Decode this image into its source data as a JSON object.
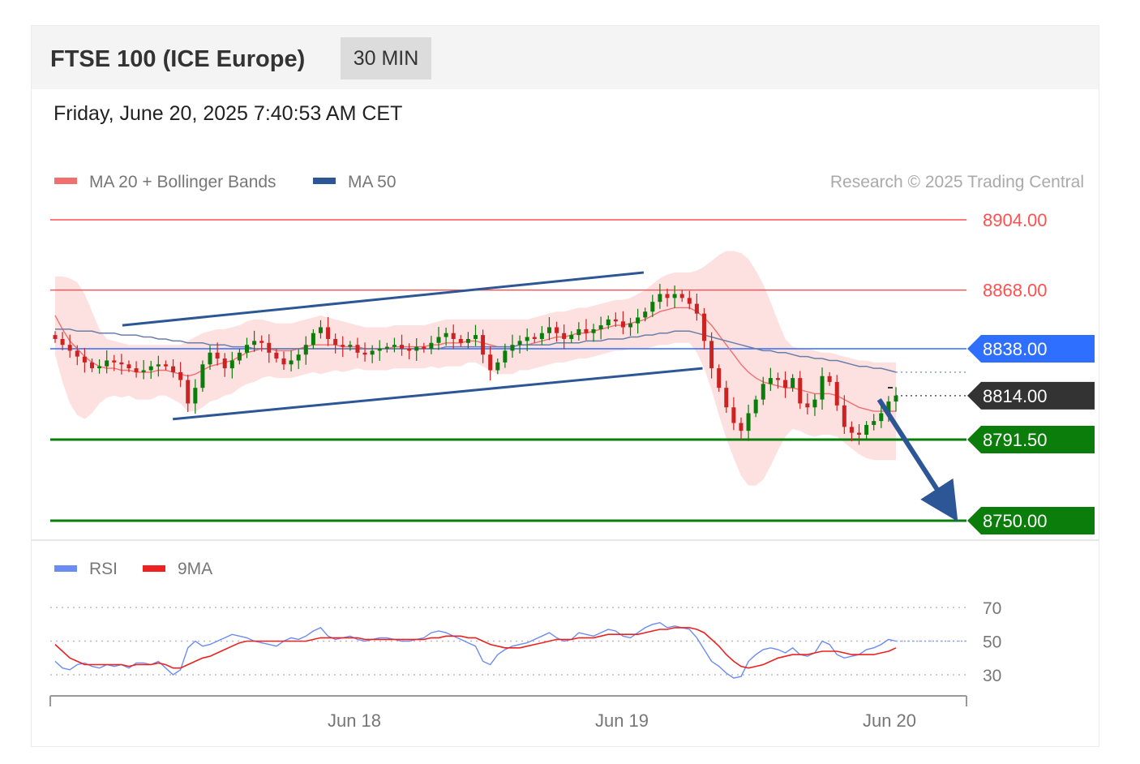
{
  "header": {
    "title": "FTSE 100 (ICE Europe)",
    "timeframe": "30 MIN",
    "timestamp": "Friday, June 20, 2025 7:40:53 AM CET"
  },
  "legend": {
    "ma20_label": "MA 20 + Bollinger Bands",
    "ma50_label": "MA 50",
    "credit": "Research © 2025 Trading Central",
    "rsi_label": "RSI",
    "rsi_ma_label": "9MA"
  },
  "colors": {
    "ma20": "#f07070",
    "bollinger_fill": "#fde0e0",
    "ma50": "#2d5696",
    "resistance": "#ff5050",
    "pivot": "#2f6fff",
    "support": "#0b7d0b",
    "last_price": "#333333",
    "candle_up": "#0b7d0b",
    "candle_down": "#cc2222",
    "rsi": "#6b8cf0",
    "rsi_ma": "#ee2020"
  },
  "chart_data": [
    {
      "type": "candlestick",
      "title": "FTSE 100 (ICE Europe)",
      "timeframe": "30 MIN",
      "x_tick_labels": [
        "Jun 18",
        "Jun 19",
        "Jun 20"
      ],
      "ylim": [
        8740,
        8915
      ],
      "levels": [
        {
          "value": 8904.0,
          "label": "8904.00",
          "role": "resistance"
        },
        {
          "value": 8868.0,
          "label": "8868.00",
          "role": "resistance"
        },
        {
          "value": 8838.0,
          "label": "8838.00",
          "role": "pivot"
        },
        {
          "value": 8814.0,
          "label": "8814.00",
          "role": "last_price"
        },
        {
          "value": 8791.5,
          "label": "8791.50",
          "role": "support"
        },
        {
          "value": 8750.0,
          "label": "8750.00",
          "role": "support"
        }
      ],
      "channel": {
        "upper": [
          {
            "t": 0.08,
            "v": 8850
          },
          {
            "t": 0.7,
            "v": 8877
          }
        ],
        "lower": [
          {
            "t": 0.14,
            "v": 8802
          },
          {
            "t": 0.77,
            "v": 8828
          }
        ]
      },
      "target_arrow": {
        "from": {
          "t": 0.98,
          "v": 8812
        },
        "to": {
          "t": 1.07,
          "v": 8750
        }
      },
      "close_series": [
        8843,
        8840,
        8837,
        8834,
        8831,
        8828,
        8829,
        8832,
        8831,
        8830,
        8828,
        8826,
        8827,
        8829,
        8830,
        8829,
        8826,
        8822,
        8810,
        8818,
        8830,
        8836,
        8833,
        8828,
        8832,
        8836,
        8840,
        8842,
        8841,
        8836,
        8833,
        8830,
        8832,
        8835,
        8840,
        8846,
        8849,
        8843,
        8840,
        8839,
        8840,
        8836,
        8835,
        8837,
        8838,
        8839,
        8840,
        8838,
        8837,
        8839,
        8838,
        8841,
        8844,
        8846,
        8843,
        8841,
        8843,
        8845,
        8835,
        8827,
        8831,
        8837,
        8840,
        8842,
        8844,
        8843,
        8846,
        8849,
        8846,
        8843,
        8845,
        8848,
        8846,
        8848,
        8850,
        8853,
        8852,
        8849,
        8851,
        8854,
        8857,
        8862,
        8866,
        8864,
        8866,
        8864,
        8861,
        8856,
        8842,
        8828,
        8818,
        8808,
        8800,
        8796,
        8805,
        8812,
        8820,
        8823,
        8822,
        8818,
        8823,
        8810,
        8808,
        8812,
        8824,
        8821,
        8809,
        8798,
        8795,
        8794,
        8799,
        8801,
        8805,
        8811,
        8814
      ],
      "ma20_series": [
        8855,
        8848,
        8842,
        8838,
        8834,
        8831,
        8829,
        8828,
        8828,
        8827,
        8827,
        8826,
        8826,
        8826,
        8827,
        8827,
        8826,
        8825,
        8824,
        8825,
        8827,
        8829,
        8830,
        8831,
        8832,
        8834,
        8836,
        8837,
        8838,
        8838,
        8837,
        8837,
        8837,
        8838,
        8839,
        8840,
        8840,
        8840,
        8840,
        8839,
        8839,
        8839,
        8838,
        8838,
        8838,
        8838,
        8839,
        8839,
        8839,
        8839,
        8839,
        8840,
        8840,
        8841,
        8841,
        8841,
        8842,
        8842,
        8841,
        8840,
        8839,
        8839,
        8839,
        8840,
        8840,
        8841,
        8842,
        8843,
        8844,
        8844,
        8845,
        8846,
        8846,
        8847,
        8848,
        8849,
        8850,
        8850,
        8851,
        8852,
        8853,
        8855,
        8857,
        8858,
        8859,
        8859,
        8859,
        8857,
        8854,
        8850,
        8845,
        8840,
        8835,
        8830,
        8826,
        8823,
        8821,
        8820,
        8819,
        8818,
        8818,
        8817,
        8816,
        8815,
        8815,
        8815,
        8814,
        8812,
        8810,
        8808,
        8807,
        8806,
        8806,
        8806,
        8806
      ],
      "bb_upper_series": [
        8875,
        8875,
        8874,
        8872,
        8866,
        8857,
        8848,
        8843,
        8842,
        8841,
        8840,
        8840,
        8840,
        8840,
        8840,
        8840,
        8840,
        8840,
        8842,
        8844,
        8846,
        8847,
        8848,
        8848,
        8849,
        8850,
        8852,
        8853,
        8853,
        8852,
        8851,
        8851,
        8851,
        8852,
        8853,
        8854,
        8855,
        8854,
        8853,
        8852,
        8851,
        8850,
        8849,
        8849,
        8849,
        8849,
        8850,
        8850,
        8850,
        8850,
        8850,
        8851,
        8852,
        8853,
        8853,
        8853,
        8853,
        8853,
        8853,
        8853,
        8853,
        8853,
        8853,
        8853,
        8853,
        8854,
        8855,
        8856,
        8857,
        8857,
        8858,
        8859,
        8859,
        8860,
        8861,
        8862,
        8863,
        8863,
        8864,
        8866,
        8868,
        8871,
        8874,
        8876,
        8877,
        8877,
        8877,
        8878,
        8880,
        8883,
        8886,
        8888,
        8888,
        8887,
        8884,
        8878,
        8871,
        8862,
        8852,
        8843,
        8839,
        8838,
        8838,
        8837,
        8836,
        8836,
        8835,
        8834,
        8833,
        8832,
        8832,
        8831,
        8831,
        8831,
        8831
      ],
      "bb_lower_series": [
        8835,
        8821,
        8810,
        8804,
        8802,
        8805,
        8810,
        8813,
        8814,
        8813,
        8814,
        8812,
        8812,
        8812,
        8814,
        8814,
        8812,
        8810,
        8806,
        8806,
        8808,
        8811,
        8812,
        8814,
        8815,
        8818,
        8820,
        8821,
        8823,
        8824,
        8823,
        8823,
        8823,
        8824,
        8825,
        8826,
        8825,
        8826,
        8827,
        8826,
        8827,
        8828,
        8827,
        8827,
        8827,
        8827,
        8828,
        8828,
        8828,
        8828,
        8828,
        8829,
        8828,
        8829,
        8829,
        8829,
        8831,
        8831,
        8829,
        8827,
        8825,
        8825,
        8825,
        8827,
        8827,
        8828,
        8829,
        8830,
        8831,
        8831,
        8832,
        8833,
        8833,
        8834,
        8835,
        8836,
        8837,
        8837,
        8838,
        8838,
        8838,
        8839,
        8840,
        8840,
        8841,
        8841,
        8841,
        8836,
        8828,
        8817,
        8804,
        8792,
        8782,
        8773,
        8768,
        8768,
        8771,
        8778,
        8786,
        8793,
        8797,
        8796,
        8794,
        8793,
        8794,
        8794,
        8793,
        8790,
        8787,
        8784,
        8782,
        8781,
        8781,
        8781,
        8781
      ],
      "ma50_series": [
        8848,
        8848,
        8848,
        8847,
        8847,
        8847,
        8846,
        8846,
        8846,
        8845,
        8845,
        8845,
        8844,
        8844,
        8843,
        8843,
        8842,
        8842,
        8841,
        8841,
        8841,
        8840,
        8840,
        8840,
        8839,
        8839,
        8839,
        8838,
        8838,
        8838,
        8838,
        8838,
        8838,
        8838,
        8838,
        8838,
        8838,
        8838,
        8838,
        8838,
        8838,
        8838,
        8838,
        8838,
        8838,
        8838,
        8838,
        8838,
        8838,
        8838,
        8838,
        8838,
        8838,
        8839,
        8839,
        8839,
        8839,
        8839,
        8839,
        8839,
        8839,
        8839,
        8839,
        8840,
        8840,
        8840,
        8840,
        8840,
        8841,
        8841,
        8841,
        8841,
        8842,
        8842,
        8842,
        8843,
        8843,
        8843,
        8844,
        8844,
        8845,
        8845,
        8846,
        8846,
        8847,
        8847,
        8847,
        8846,
        8845,
        8844,
        8843,
        8842,
        8841,
        8840,
        8839,
        8838,
        8837,
        8837,
        8836,
        8836,
        8835,
        8834,
        8834,
        8833,
        8833,
        8832,
        8832,
        8831,
        8830,
        8829,
        8829,
        8828,
        8828,
        8827,
        8826
      ]
    },
    {
      "type": "line",
      "title": "RSI",
      "series": [
        {
          "name": "RSI",
          "values": [
            38,
            34,
            33,
            36,
            37,
            35,
            34,
            36,
            35,
            36,
            34,
            37,
            37,
            36,
            38,
            34,
            30,
            33,
            46,
            50,
            47,
            48,
            50,
            52,
            54,
            53,
            52,
            50,
            49,
            48,
            47,
            50,
            52,
            51,
            53,
            56,
            58,
            53,
            51,
            52,
            53,
            51,
            50,
            51,
            52,
            52,
            51,
            50,
            50,
            51,
            52,
            55,
            56,
            55,
            53,
            51,
            49,
            47,
            38,
            36,
            42,
            45,
            47,
            48,
            49,
            51,
            53,
            55,
            52,
            50,
            51,
            55,
            54,
            53,
            55,
            57,
            56,
            53,
            52,
            55,
            58,
            60,
            61,
            58,
            59,
            58,
            57,
            52,
            45,
            38,
            35,
            31,
            28,
            29,
            38,
            42,
            45,
            46,
            45,
            43,
            46,
            42,
            41,
            43,
            50,
            48,
            42,
            40,
            41,
            42,
            45,
            46,
            48,
            51,
            50
          ]
        },
        {
          "name": "9MA",
          "values": [
            48,
            44,
            40,
            38,
            36,
            36,
            36,
            36,
            36,
            36,
            35,
            36,
            36,
            36,
            37,
            36,
            34,
            34,
            36,
            38,
            40,
            41,
            43,
            45,
            47,
            49,
            50,
            50,
            50,
            50,
            50,
            50,
            50,
            50,
            50,
            51,
            52,
            52,
            52,
            52,
            52,
            52,
            51,
            51,
            51,
            51,
            51,
            51,
            51,
            51,
            51,
            52,
            52,
            53,
            53,
            53,
            52,
            52,
            50,
            48,
            47,
            46,
            46,
            46,
            47,
            48,
            49,
            50,
            51,
            51,
            51,
            52,
            52,
            52,
            53,
            54,
            54,
            54,
            54,
            54,
            55,
            56,
            57,
            57,
            58,
            58,
            58,
            57,
            55,
            51,
            47,
            42,
            38,
            35,
            34,
            35,
            36,
            38,
            40,
            41,
            42,
            42,
            42,
            43,
            44,
            44,
            44,
            43,
            42,
            42,
            42,
            42,
            43,
            44,
            46
          ]
        }
      ],
      "y_tick_labels": [
        "70",
        "50",
        "30"
      ],
      "ylim": [
        20,
        75
      ]
    }
  ]
}
